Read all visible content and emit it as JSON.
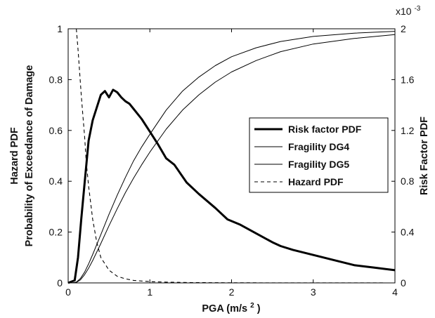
{
  "chart_data": {
    "type": "line",
    "xlabel_base": "PGA (m/s",
    "xlabel_sup": "2",
    "xlabel_close": ")",
    "ylabel_left_outer": "Hazard PDF",
    "ylabel_left_inner": "Probability of Exceedance of Damage",
    "ylabel_right": "Risk Factor PDF",
    "right_axis_multiplier_base": "x10",
    "right_axis_multiplier_exp": "-3",
    "xlim": [
      0,
      4
    ],
    "ylim_left": [
      0,
      1
    ],
    "ylim_right": [
      0,
      0.002
    ],
    "x_ticks": [
      "0",
      "1",
      "2",
      "3",
      "4"
    ],
    "y_left_ticks": [
      "0",
      "0.2",
      "0.4",
      "0.6",
      "0.8",
      "1"
    ],
    "y_right_ticks": [
      "0",
      "0.4",
      "0.8",
      "1.2",
      "1.6",
      "2"
    ],
    "legend_position": "center-right",
    "series": [
      {
        "name": "Risk factor PDF",
        "axis": "right",
        "style": "thick-solid",
        "color": "#000000",
        "x": [
          0,
          0.08,
          0.12,
          0.16,
          0.2,
          0.25,
          0.3,
          0.35,
          0.4,
          0.45,
          0.5,
          0.55,
          0.6,
          0.65,
          0.7,
          0.75,
          0.8,
          0.9,
          1.0,
          1.1,
          1.2,
          1.3,
          1.45,
          1.6,
          1.8,
          1.95,
          2.1,
          2.3,
          2.5,
          2.6,
          2.75,
          3.0,
          3.25,
          3.5,
          3.75,
          4.0
        ],
        "y": [
          0,
          2e-05,
          0.0002,
          0.0005,
          0.00078,
          0.00112,
          0.00128,
          0.00138,
          0.00148,
          0.00151,
          0.00146,
          0.00152,
          0.0015,
          0.00146,
          0.00143,
          0.00141,
          0.00137,
          0.00129,
          0.00119,
          0.00109,
          0.00098,
          0.00093,
          0.00079,
          0.0007,
          0.00059,
          0.0005,
          0.00046,
          0.00039,
          0.00032,
          0.00029,
          0.00026,
          0.00022,
          0.00018,
          0.00014,
          0.00012,
          0.0001
        ]
      },
      {
        "name": "Fragility DG4",
        "axis": "left",
        "style": "thin-solid",
        "color": "#000000",
        "x": [
          0,
          0.05,
          0.1,
          0.15,
          0.2,
          0.25,
          0.3,
          0.4,
          0.5,
          0.6,
          0.7,
          0.8,
          0.9,
          1.0,
          1.2,
          1.4,
          1.6,
          1.8,
          2.0,
          2.3,
          2.6,
          3.0,
          3.5,
          4.0
        ],
        "y": [
          0,
          0.0001,
          0.003,
          0.017,
          0.042,
          0.075,
          0.112,
          0.19,
          0.27,
          0.345,
          0.415,
          0.48,
          0.535,
          0.585,
          0.68,
          0.755,
          0.81,
          0.855,
          0.89,
          0.925,
          0.95,
          0.97,
          0.983,
          0.99
        ]
      },
      {
        "name": "Fragility DG5",
        "axis": "left",
        "style": "thin-solid",
        "color": "#000000",
        "x": [
          0,
          0.05,
          0.1,
          0.15,
          0.2,
          0.25,
          0.3,
          0.4,
          0.5,
          0.6,
          0.7,
          0.8,
          0.9,
          1.0,
          1.2,
          1.4,
          1.6,
          1.8,
          2.0,
          2.3,
          2.6,
          3.0,
          3.5,
          4.0
        ],
        "y": [
          0,
          0.0001,
          0.002,
          0.012,
          0.032,
          0.058,
          0.088,
          0.155,
          0.225,
          0.292,
          0.355,
          0.412,
          0.465,
          0.515,
          0.605,
          0.68,
          0.74,
          0.79,
          0.83,
          0.875,
          0.91,
          0.94,
          0.962,
          0.977
        ]
      },
      {
        "name": "Hazard PDF",
        "axis": "left",
        "style": "dashed",
        "color": "#000000",
        "x": [
          0.1,
          0.12,
          0.14,
          0.16,
          0.18,
          0.2,
          0.22,
          0.25,
          0.3,
          0.35,
          0.4,
          0.5,
          0.6,
          0.7,
          0.8,
          1.0,
          1.2,
          1.5,
          2.0,
          2.5,
          3.0,
          4.0
        ],
        "y": [
          1.0,
          0.92,
          0.83,
          0.74,
          0.66,
          0.58,
          0.48,
          0.38,
          0.25,
          0.16,
          0.1,
          0.05,
          0.026,
          0.016,
          0.01,
          0.005,
          0.003,
          0.0015,
          0.0006,
          0.0003,
          0.0002,
          0.0001
        ]
      }
    ]
  }
}
